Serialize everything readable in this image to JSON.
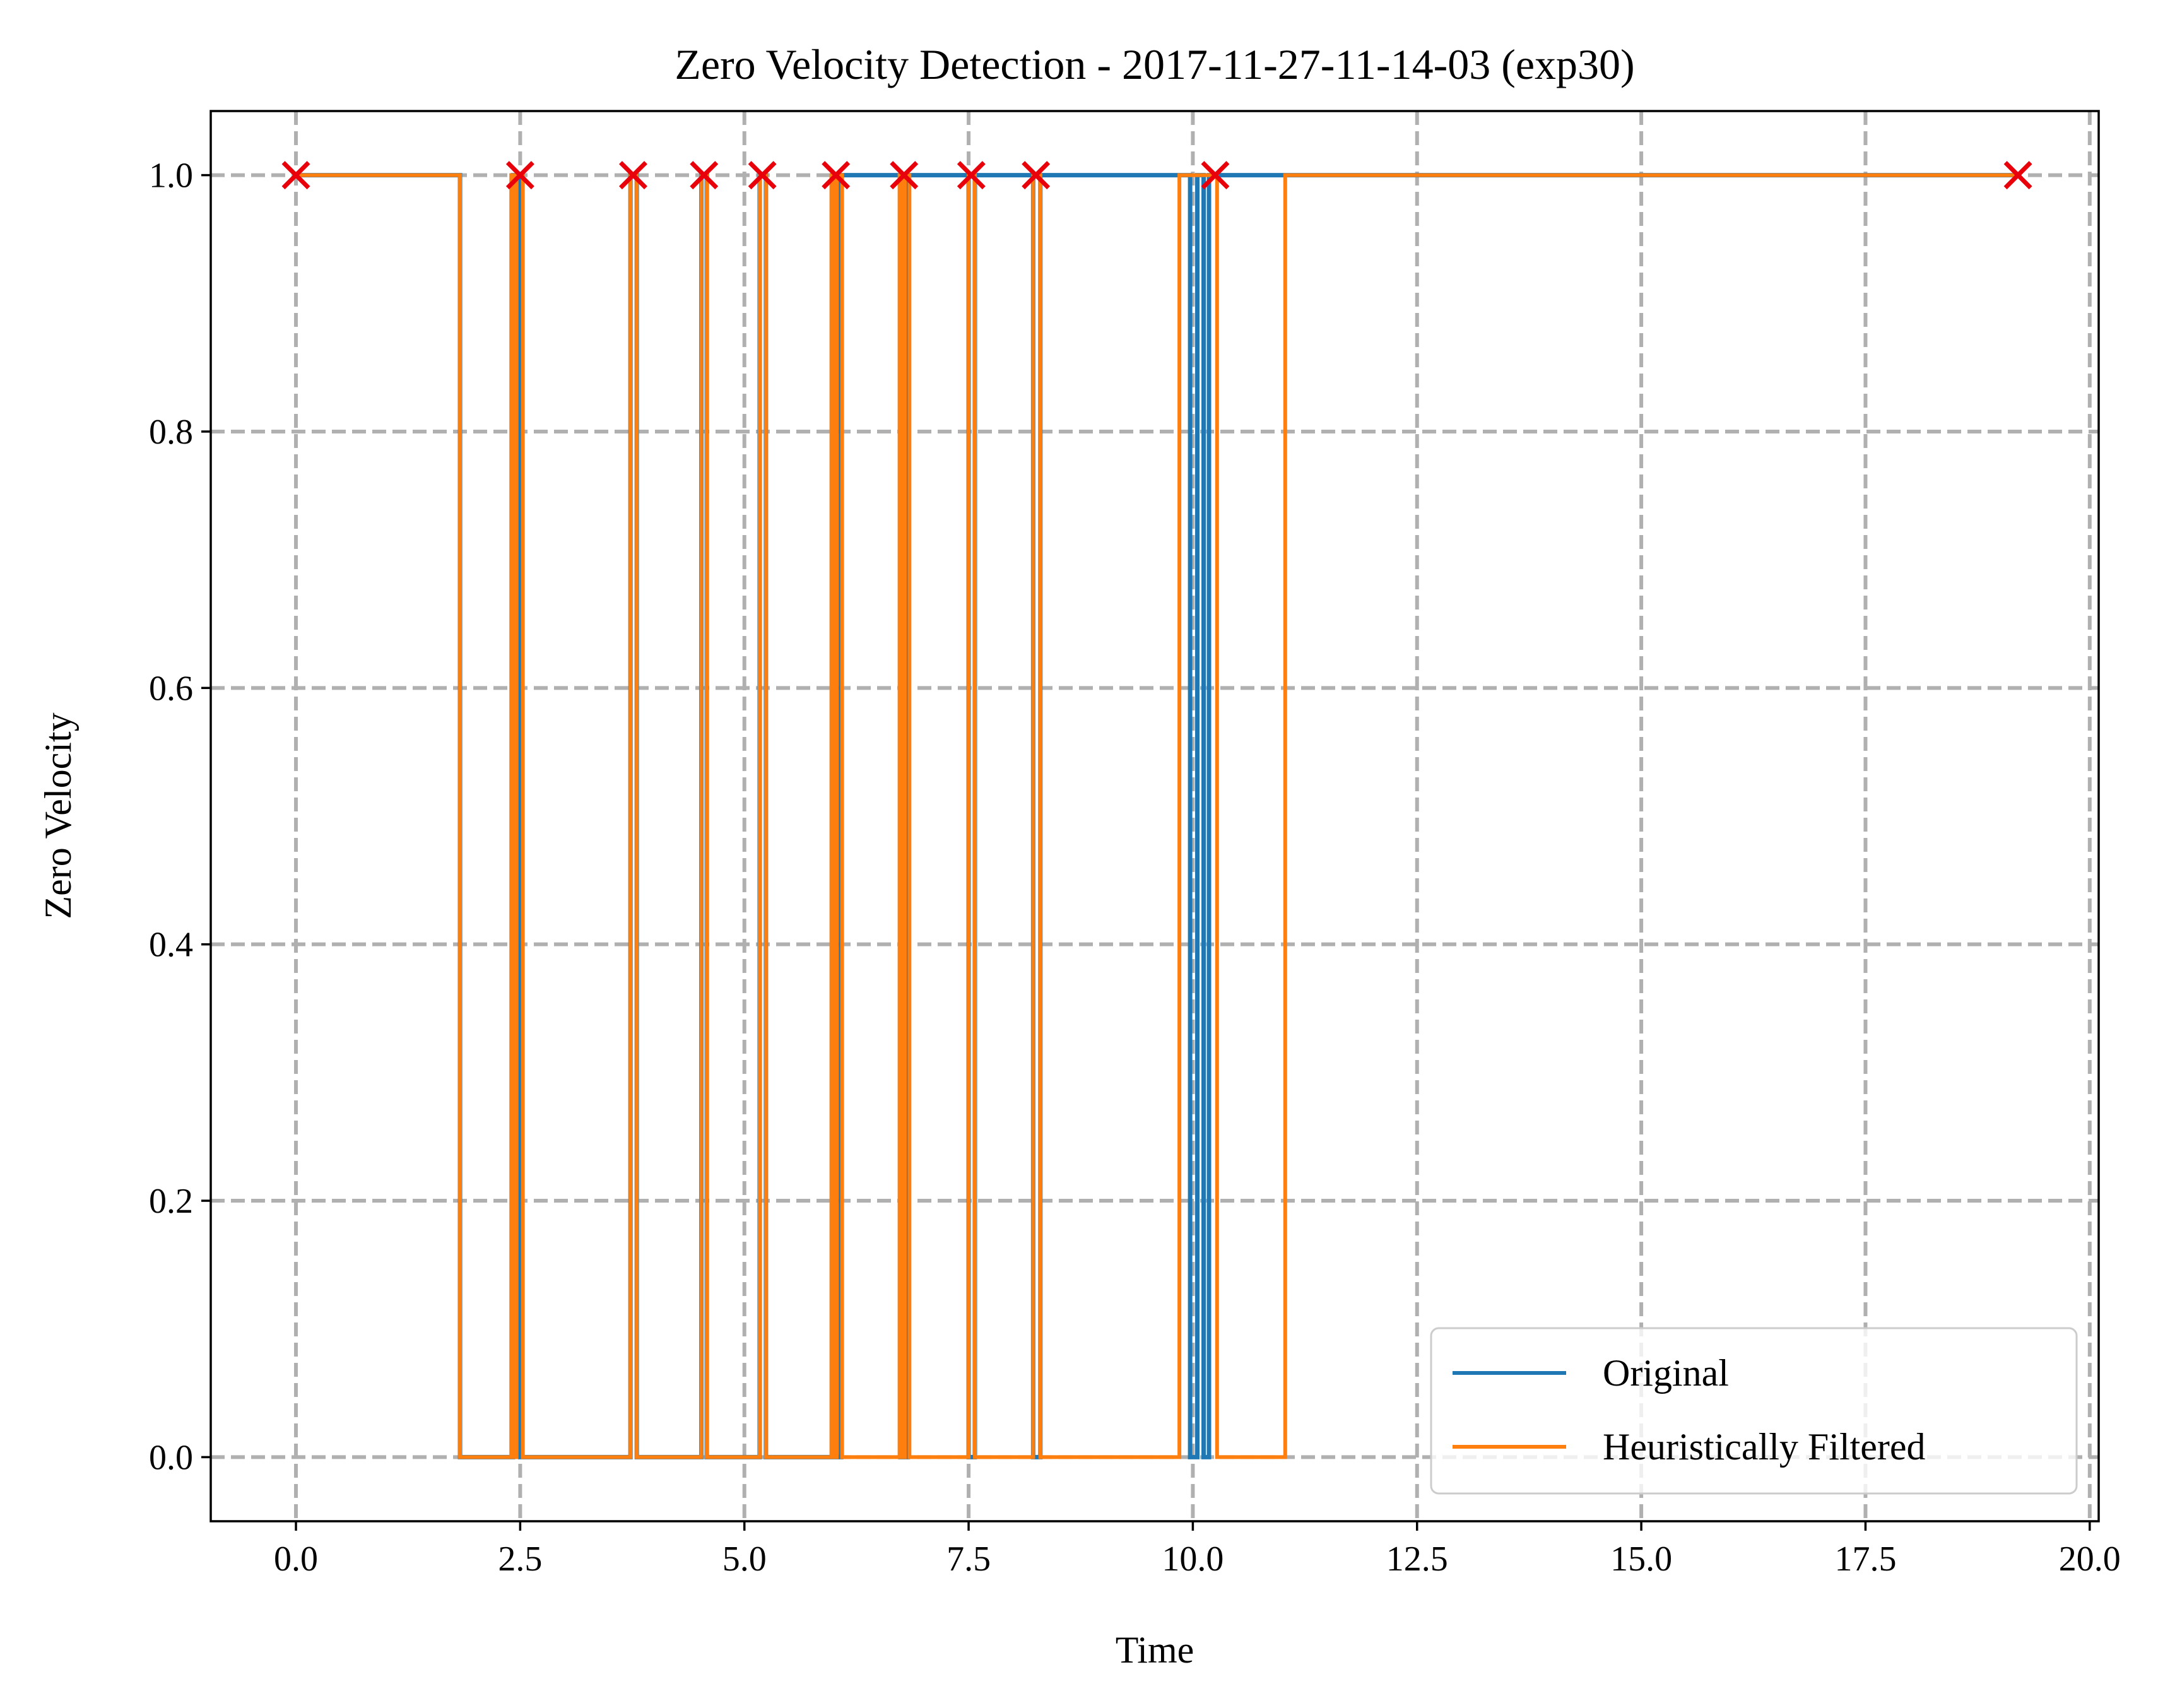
{
  "chart_data": {
    "type": "line",
    "title": "Zero Velocity Detection - 2017-11-27-11-14-03 (exp30)",
    "xlabel": "Time",
    "ylabel": "Zero Velocity",
    "xlim": [
      -0.95,
      20.1
    ],
    "ylim": [
      -0.05,
      1.05
    ],
    "xticks": [
      0.0,
      2.5,
      5.0,
      7.5,
      10.0,
      12.5,
      15.0,
      17.5,
      20.0
    ],
    "xtick_labels": [
      "0.0",
      "2.5",
      "5.0",
      "7.5",
      "10.0",
      "12.5",
      "15.0",
      "17.5",
      "20.0"
    ],
    "yticks": [
      0.0,
      0.2,
      0.4,
      0.6,
      0.8,
      1.0
    ],
    "ytick_labels": [
      "0.0",
      "0.2",
      "0.4",
      "0.6",
      "0.8",
      "1.0"
    ],
    "grid": true,
    "legend_position": "lower-right",
    "series": [
      {
        "name": "Original",
        "color": "#1f77b4",
        "step": true,
        "x": [
          0.0,
          1.83,
          1.83,
          2.42,
          2.42,
          2.5,
          2.5,
          3.73,
          3.73,
          3.8,
          3.8,
          4.52,
          4.52,
          4.58,
          4.58,
          5.17,
          5.17,
          5.24,
          5.24,
          5.98,
          5.98,
          6.03,
          6.03,
          6.08,
          6.08,
          6.74,
          6.74,
          6.82,
          6.82,
          7.5,
          7.5,
          7.57,
          7.57,
          8.22,
          8.22,
          8.3,
          8.3,
          9.97,
          9.97,
          10.05,
          10.05,
          10.12,
          10.12,
          10.18,
          10.18,
          11.05,
          11.05,
          19.2
        ],
        "y": [
          1,
          1,
          0,
          0,
          1,
          1,
          0,
          0,
          1,
          1,
          0,
          0,
          1,
          1,
          0,
          0,
          1,
          1,
          0,
          0,
          1,
          1,
          0,
          0,
          1,
          1,
          0,
          0,
          1,
          1,
          0,
          0,
          1,
          1,
          0,
          0,
          1,
          1,
          0,
          0,
          1,
          1,
          0,
          0,
          1,
          1,
          1,
          1
        ]
      },
      {
        "name": "Heuristically Filtered",
        "color": "#ff7f0e",
        "step": true,
        "x": [
          0.0,
          1.83,
          1.83,
          2.4,
          2.4,
          2.43,
          2.43,
          2.46,
          2.46,
          2.53,
          2.53,
          3.73,
          3.73,
          3.8,
          3.8,
          4.52,
          4.52,
          4.58,
          4.58,
          5.17,
          5.17,
          5.24,
          5.24,
          5.97,
          5.97,
          6.0,
          6.0,
          6.03,
          6.03,
          6.09,
          6.09,
          6.73,
          6.73,
          6.76,
          6.76,
          6.79,
          6.79,
          6.84,
          6.84,
          7.5,
          7.5,
          7.57,
          7.57,
          8.22,
          8.22,
          8.3,
          8.3,
          9.85,
          9.85,
          10.27,
          10.27,
          11.03,
          11.03,
          19.2
        ],
        "y": [
          1,
          1,
          0,
          0,
          1,
          1,
          0,
          0,
          1,
          1,
          0,
          0,
          1,
          1,
          0,
          0,
          1,
          1,
          0,
          0,
          1,
          1,
          0,
          0,
          1,
          1,
          0,
          0,
          1,
          1,
          0,
          0,
          1,
          1,
          0,
          0,
          1,
          1,
          0,
          0,
          1,
          1,
          0,
          0,
          1,
          1,
          0,
          0,
          1,
          1,
          0,
          0,
          1,
          1
        ]
      }
    ],
    "markers": {
      "color": "#e8000b",
      "symbol": "x",
      "x": [
        0.0,
        2.5,
        3.76,
        4.55,
        5.2,
        6.02,
        6.78,
        7.53,
        8.25,
        10.25,
        19.2
      ],
      "y": [
        1,
        1,
        1,
        1,
        1,
        1,
        1,
        1,
        1,
        1,
        1
      ]
    }
  }
}
